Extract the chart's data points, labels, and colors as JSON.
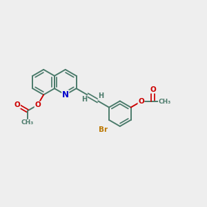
{
  "bg_color": "#eeeeee",
  "bond_color": "#4a7a6a",
  "N_color": "#0000cc",
  "O_color": "#cc0000",
  "Br_color": "#bb7700",
  "bond_width": 1.4,
  "fig_xlim": [
    0,
    10
  ],
  "fig_ylim": [
    0,
    10
  ],
  "figsize": [
    3.0,
    3.0
  ],
  "dpi": 100
}
